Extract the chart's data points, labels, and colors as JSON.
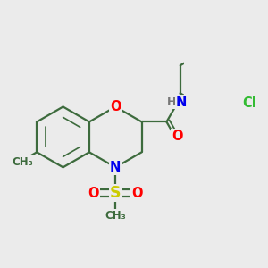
{
  "bg_color": "#ebebeb",
  "bond_color": "#3d6b3d",
  "bond_width": 1.6,
  "atom_colors": {
    "O": "#ff0000",
    "N": "#0000ee",
    "S": "#cccc00",
    "Cl": "#33bb33",
    "H": "#777777"
  },
  "font_size": 10.5,
  "font_size_small": 9
}
